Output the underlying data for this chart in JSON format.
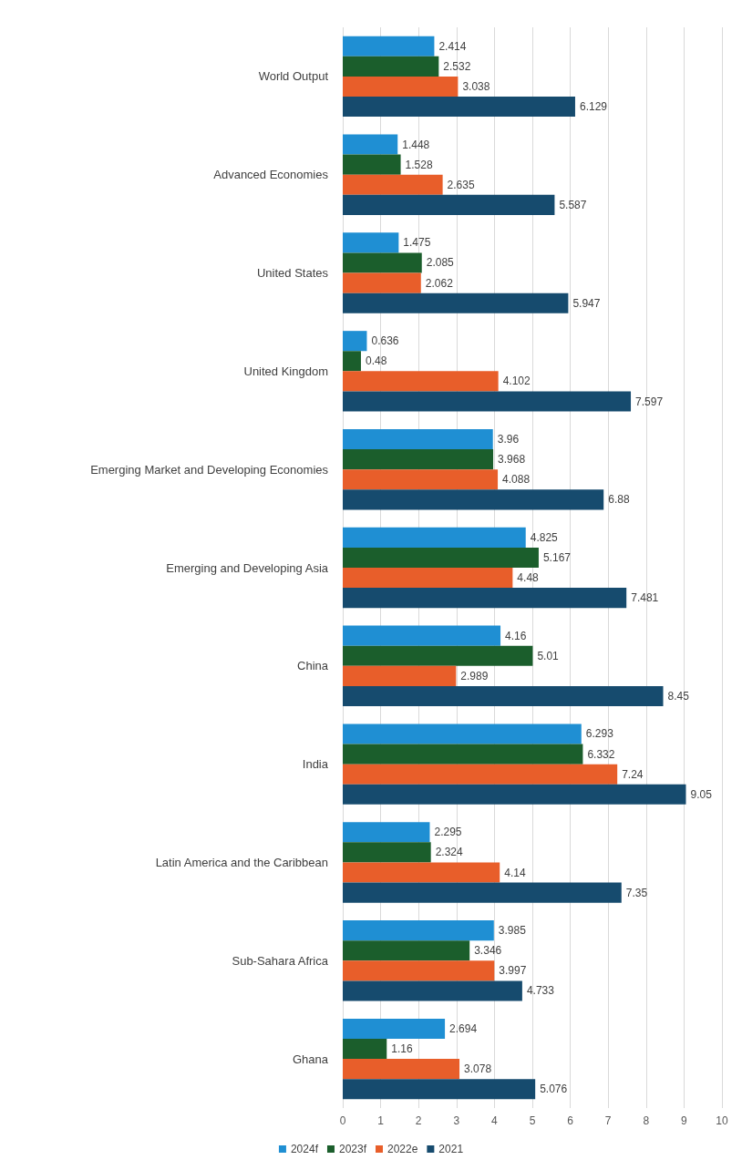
{
  "chart_data": {
    "type": "bar",
    "orientation": "horizontal",
    "categories": [
      "World Output",
      "Advanced Economies",
      "United States",
      "United Kingdom",
      "Emerging Market and Developing Economies",
      "Emerging and Developing Asia",
      "China",
      "India",
      "Latin America and the Caribbean",
      "Sub-Sahara Africa",
      "Ghana"
    ],
    "series": [
      {
        "name": "2024f",
        "color": "#1f8fd3",
        "values": [
          2.414,
          1.448,
          1.475,
          0.636,
          3.96,
          4.825,
          4.16,
          6.293,
          2.295,
          3.985,
          2.694
        ]
      },
      {
        "name": "2023f",
        "color": "#1b5e2c",
        "values": [
          2.532,
          1.528,
          2.085,
          0.48,
          3.968,
          5.167,
          5.01,
          6.332,
          2.324,
          3.346,
          1.16
        ]
      },
      {
        "name": "2022e",
        "color": "#e85e2a",
        "values": [
          3.038,
          2.635,
          2.062,
          4.102,
          4.088,
          4.48,
          2.989,
          7.24,
          4.14,
          3.997,
          3.078
        ]
      },
      {
        "name": "2021",
        "color": "#164b6e",
        "values": [
          6.129,
          5.587,
          5.947,
          7.597,
          6.88,
          7.481,
          8.45,
          9.05,
          7.35,
          4.733,
          5.076
        ]
      }
    ],
    "xlim": [
      0,
      10
    ],
    "xticks": [
      0,
      1,
      2,
      3,
      4,
      5,
      6,
      7,
      8,
      9,
      10
    ],
    "grid": "x",
    "legend": "bottom",
    "data_labels": true
  }
}
